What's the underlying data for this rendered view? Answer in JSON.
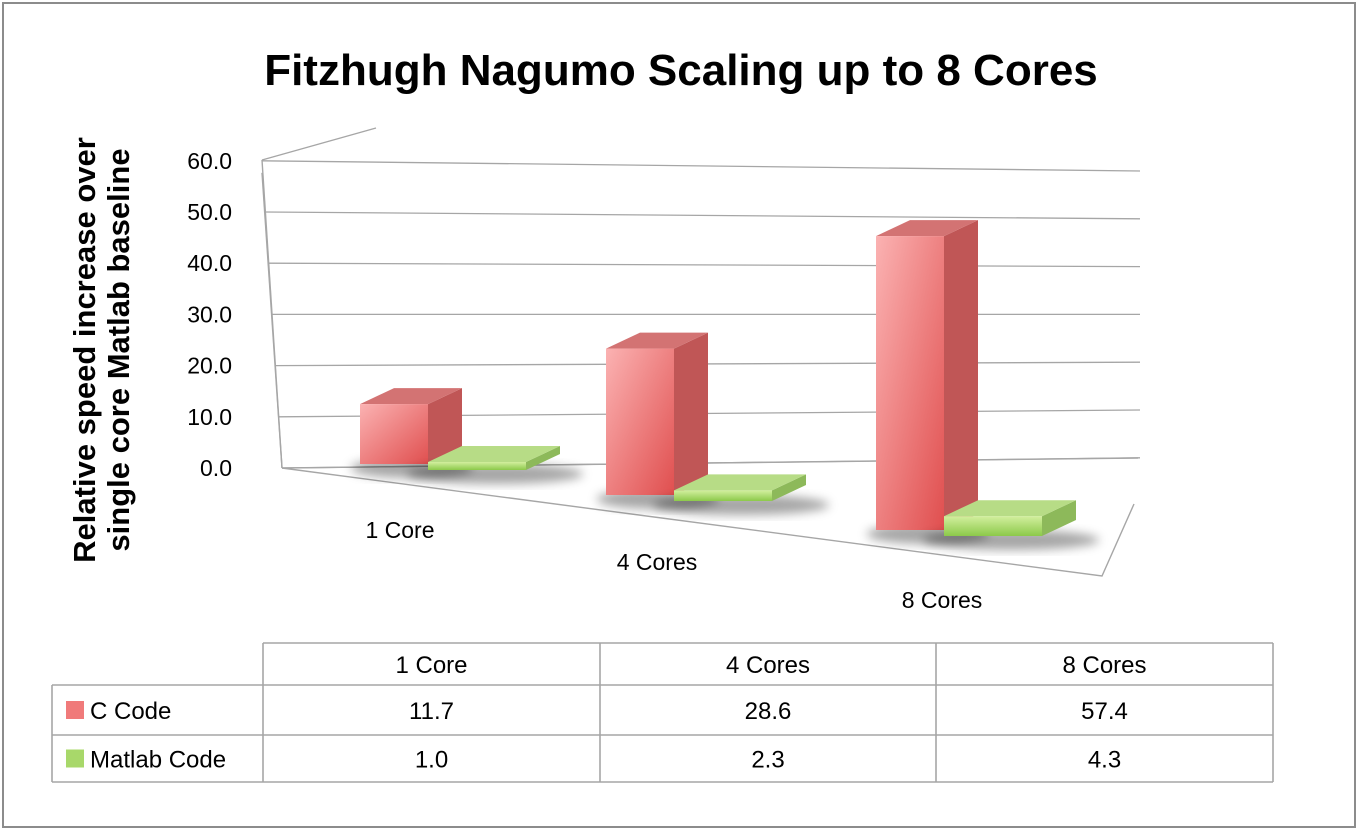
{
  "chart_data": {
    "type": "bar",
    "title": "Fitzhugh Nagumo Scaling up to 8 Cores",
    "ylabel_lines": [
      "Relative speed increase over",
      "single core Matlab baseline"
    ],
    "categories": [
      "1 Core",
      "4 Cores",
      "8 Cores"
    ],
    "series": [
      {
        "name": "C Code",
        "values": [
          11.7,
          28.6,
          57.4
        ],
        "color": "#f07a7a"
      },
      {
        "name": "Matlab Code",
        "values": [
          1.0,
          2.3,
          4.3
        ],
        "color": "#a8d86a"
      }
    ],
    "ylim": [
      0,
      60
    ],
    "yticks": [
      "0.0",
      "10.0",
      "20.0",
      "30.0",
      "40.0",
      "50.0",
      "60.0"
    ],
    "grid": true,
    "data_table": true,
    "three_d": true
  }
}
